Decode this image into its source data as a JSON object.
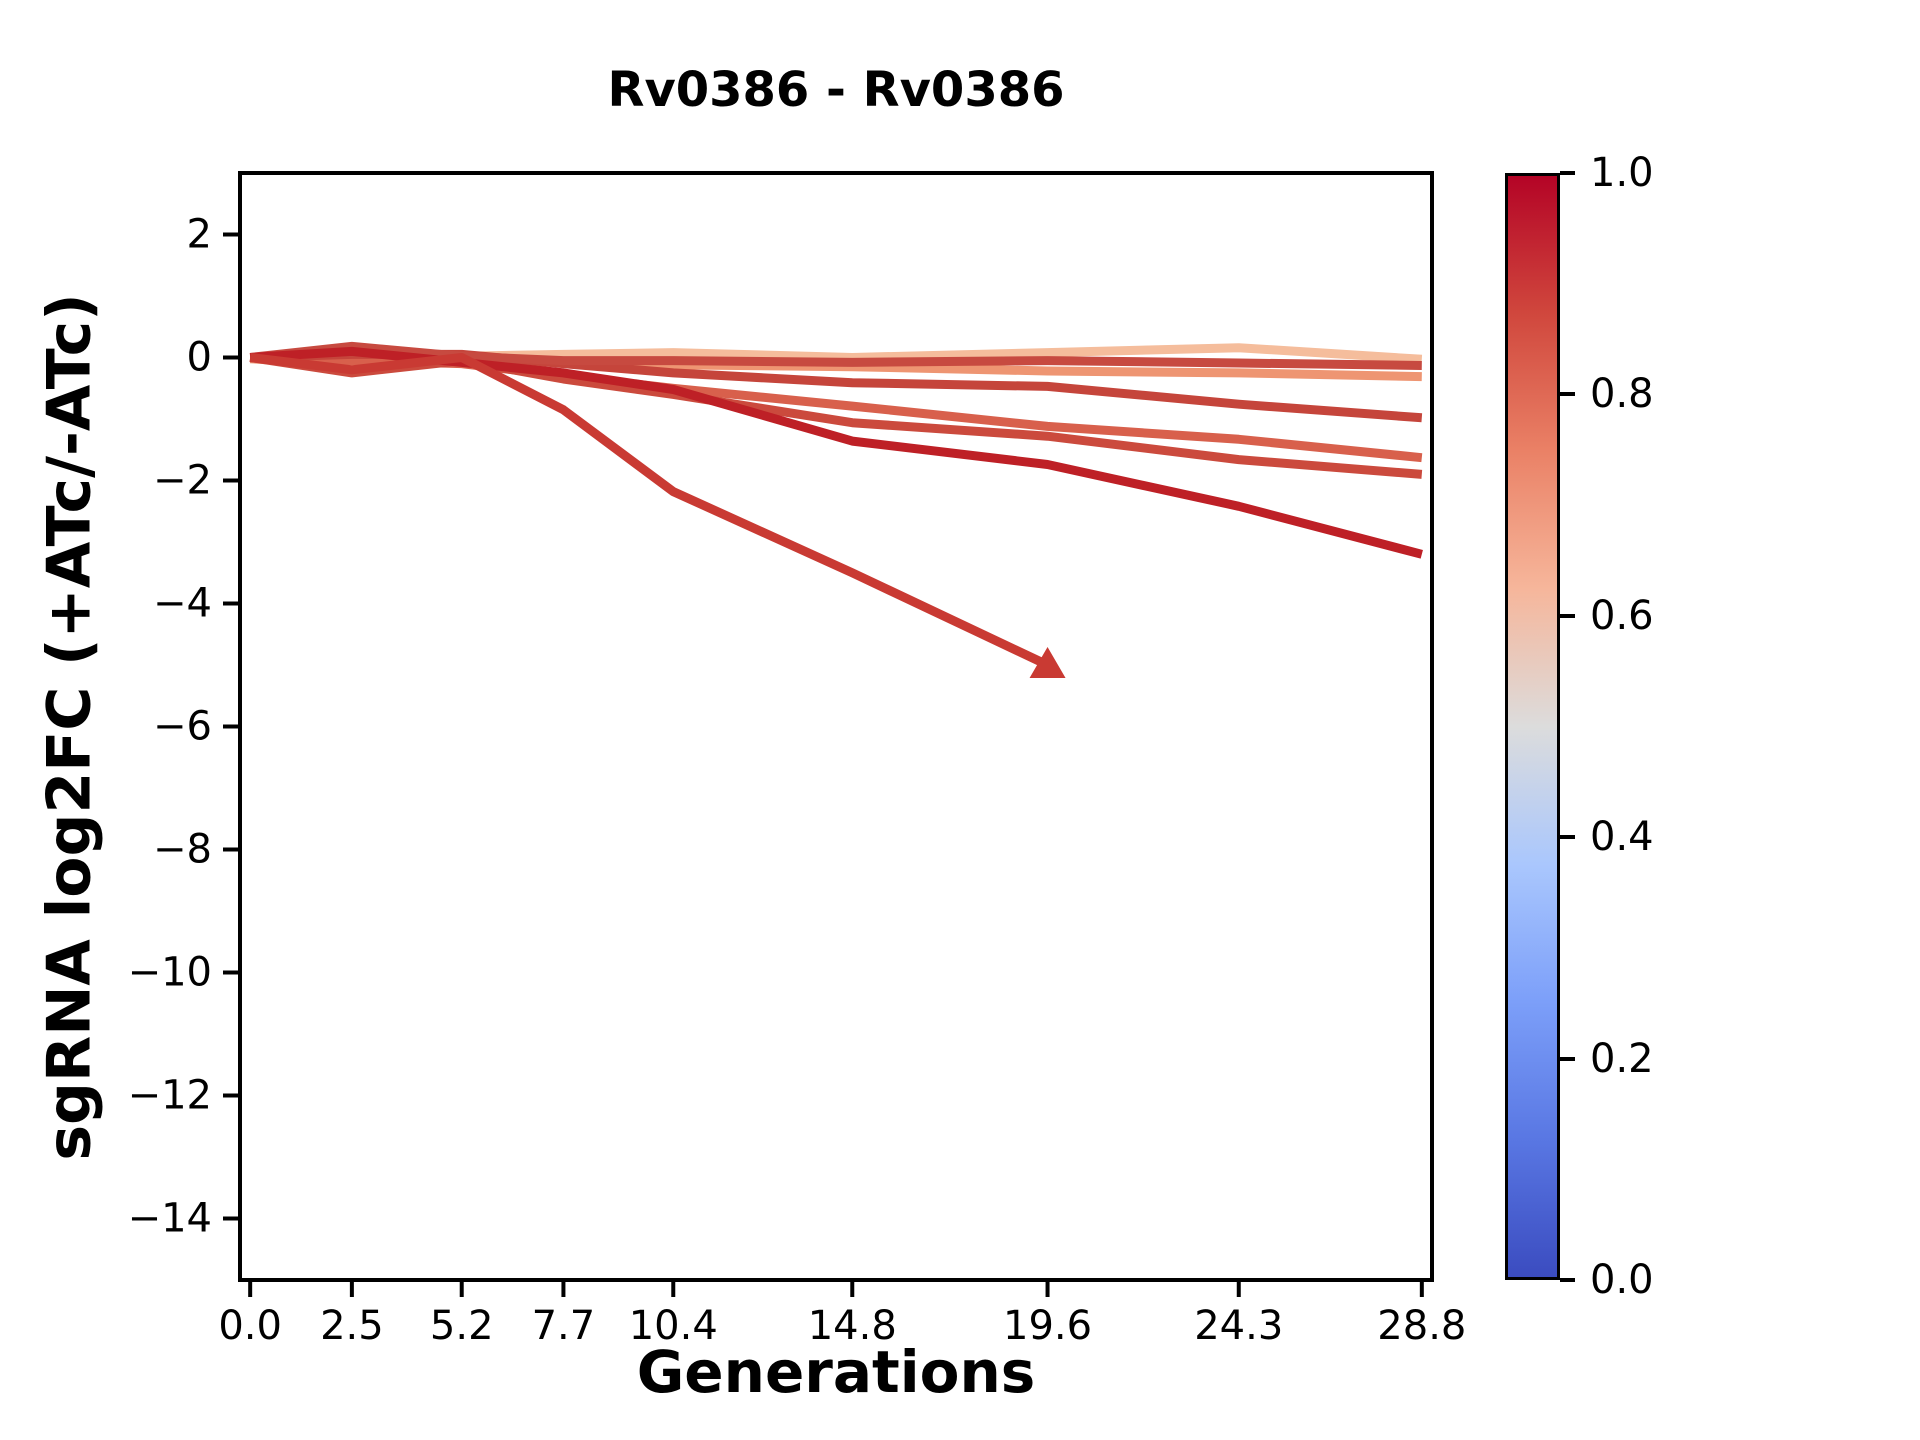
{
  "chart_data": {
    "type": "line",
    "title": "Rv0386 - Rv0386",
    "xlabel": "Generations",
    "ylabel": "sgRNA log2FC (+ATc/-ATc)",
    "x": [
      0.0,
      2.5,
      5.2,
      7.7,
      10.4,
      14.8,
      19.6,
      24.3,
      28.8
    ],
    "x_tick_labels": [
      "0.0",
      "2.5",
      "5.2",
      "7.7",
      "10.4",
      "14.8",
      "19.6",
      "24.3",
      "28.8"
    ],
    "y_tick_values": [
      2,
      0,
      -2,
      -4,
      -6,
      -8,
      -10,
      -12,
      -14
    ],
    "y_tick_labels": [
      "2",
      "0",
      "−2",
      "−4",
      "−6",
      "−8",
      "−10",
      "−12",
      "−14"
    ],
    "xlim": [
      -0.25,
      29.05
    ],
    "ylim": [
      -15.0,
      3.0
    ],
    "grid": false,
    "legend": false,
    "line_width": 9,
    "series": [
      {
        "color": "#f5bd9c",
        "colormap_value": 0.6,
        "values": [
          0.0,
          -0.05,
          0.02,
          0.05,
          0.08,
          0.0,
          0.08,
          0.16,
          -0.03
        ]
      },
      {
        "color": "#ee9572",
        "colormap_value": 0.7,
        "values": [
          -0.02,
          -0.12,
          -0.05,
          -0.08,
          -0.12,
          -0.15,
          -0.22,
          -0.25,
          -0.31
        ]
      },
      {
        "color": "#d8604c",
        "colormap_value": 0.8,
        "values": [
          0.0,
          -0.05,
          -0.1,
          -0.3,
          -0.5,
          -0.79,
          -1.12,
          -1.33,
          -1.63
        ]
      },
      {
        "color": "#cb4a3d",
        "colormap_value": 0.85,
        "values": [
          0.0,
          -0.25,
          -0.05,
          -0.35,
          -0.6,
          -1.06,
          -1.28,
          -1.66,
          -1.9
        ]
      },
      {
        "color": "#c5453b",
        "colormap_value": 0.88,
        "values": [
          0.0,
          0.05,
          0.05,
          -0.1,
          -0.25,
          -0.41,
          -0.47,
          -0.76,
          -0.98
        ]
      },
      {
        "color": "#c74a40",
        "colormap_value": 0.86,
        "values": [
          0.0,
          0.18,
          0.02,
          -0.05,
          -0.05,
          -0.08,
          -0.05,
          -0.09,
          -0.13
        ]
      },
      {
        "color": "#be2026",
        "colormap_value": 0.97,
        "values": [
          0.0,
          0.1,
          -0.08,
          -0.25,
          -0.52,
          -1.36,
          -1.74,
          -2.42,
          -3.2
        ]
      },
      {
        "color": "#c93a33",
        "colormap_value": 0.9,
        "values": [
          0.0,
          -0.2,
          0.0,
          -0.85,
          -2.18,
          -3.5,
          -5.0
        ],
        "end_marker": "triangle-up"
      }
    ],
    "colorbar": {
      "colormap": "coolwarm",
      "tick_labels": [
        "1.0",
        "0.8",
        "0.6",
        "0.4",
        "0.2",
        "0.0"
      ],
      "tick_values": [
        1.0,
        0.8,
        0.6,
        0.4,
        0.2,
        0.0
      ],
      "gradient_stops_bottom_to_top": [
        "#3b4cc0",
        "#5977e3",
        "#7c9ff9",
        "#aac7fd",
        "#dcdcdc",
        "#f6b69b",
        "#ea8166",
        "#d0473d",
        "#b40426"
      ]
    }
  }
}
